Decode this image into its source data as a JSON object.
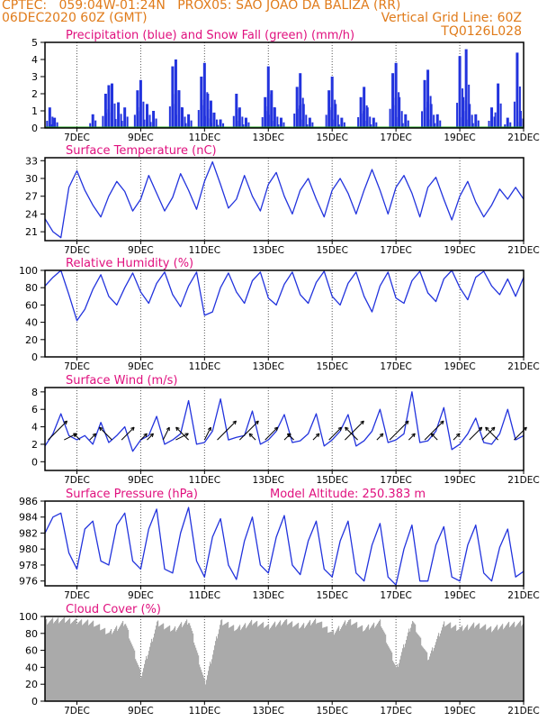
{
  "header": {
    "line1_left": "CPTEC:   059:04W-01:24N   PROX05: SAO JOAO DA BALIZA (RR)",
    "line2_left": "06DEC2020 60Z (GMT)",
    "line2_right": "Vertical Grid Line: 60Z",
    "line3_right": "TQ0126L028"
  },
  "colors": {
    "header": "#e07b1a",
    "title": "#e0107e",
    "series_blue": "#2233dd",
    "snow_green": "#22aa22",
    "cloud_gray": "#aaaaaa",
    "axis": "#000000"
  },
  "x_axis": {
    "start": "06DEC2020 00Z",
    "end": "21DEC2020 00Z",
    "tick_labels": [
      "7DEC",
      "9DEC",
      "11DEC",
      "13DEC",
      "15DEC",
      "17DEC",
      "19DEC",
      "21DEC"
    ],
    "tick_days": [
      1,
      3,
      5,
      7,
      9,
      11,
      13,
      15
    ]
  },
  "chart_data": [
    {
      "type": "bar",
      "title": "Precipitation (blue) and Snow Fall (green) (mm/h)",
      "ylim": [
        0,
        5
      ],
      "yticks": [
        0,
        1,
        2,
        3,
        4,
        5
      ],
      "series": [
        {
          "name": "Precipitation",
          "color": "#2233dd",
          "x": [
            0.15,
            0.3,
            1.5,
            1.9,
            2.0,
            2.1,
            2.3,
            2.5,
            2.9,
            3.0,
            3.2,
            3.4,
            4.0,
            4.1,
            4.2,
            4.3,
            4.5,
            4.9,
            5.0,
            5.1,
            5.2,
            5.3,
            5.5,
            6.0,
            6.1,
            6.3,
            6.9,
            7.0,
            7.1,
            7.2,
            7.4,
            7.9,
            8.0,
            8.1,
            8.3,
            8.9,
            9.0,
            9.1,
            9.3,
            9.9,
            10.0,
            10.1,
            10.3,
            10.9,
            11.0,
            11.1,
            11.3,
            11.9,
            12.0,
            12.1,
            12.3,
            13.0,
            13.1,
            13.2,
            13.3,
            13.5,
            14.0,
            14.2,
            14.5,
            14.8,
            14.9
          ],
          "values": [
            1.2,
            0.6,
            0.8,
            2.0,
            2.5,
            2.6,
            1.5,
            1.2,
            2.2,
            2.8,
            1.4,
            1.0,
            3.6,
            4.0,
            2.2,
            1.2,
            0.8,
            3.0,
            3.8,
            2.0,
            1.6,
            0.9,
            0.5,
            2.0,
            1.2,
            0.6,
            1.8,
            3.6,
            2.2,
            1.2,
            0.6,
            2.4,
            3.2,
            1.4,
            0.6,
            2.2,
            3.0,
            1.4,
            0.6,
            1.8,
            2.4,
            1.2,
            0.6,
            3.2,
            3.8,
            1.8,
            0.8,
            2.8,
            3.4,
            1.4,
            0.8,
            4.2,
            1.8,
            4.6,
            1.4,
            0.8,
            1.2,
            2.6,
            0.6,
            4.4,
            1.0
          ]
        },
        {
          "name": "Snow Fall",
          "color": "#22aa22",
          "x": [],
          "values": []
        }
      ]
    },
    {
      "type": "line",
      "title": "Surface Temperature (nC)",
      "ylim": [
        19.5,
        33.5
      ],
      "yticks": [
        21,
        24,
        27,
        30,
        33
      ],
      "series": [
        {
          "name": "Surface Temperature",
          "color": "#2233dd",
          "x": [
            0.0,
            0.25,
            0.5,
            0.75,
            1.0,
            1.25,
            1.5,
            1.75,
            2.0,
            2.25,
            2.5,
            2.75,
            3.0,
            3.25,
            3.5,
            3.75,
            4.0,
            4.25,
            4.5,
            4.75,
            5.0,
            5.25,
            5.5,
            5.75,
            6.0,
            6.25,
            6.5,
            6.75,
            7.0,
            7.25,
            7.5,
            7.75,
            8.0,
            8.25,
            8.5,
            8.75,
            9.0,
            9.25,
            9.5,
            9.75,
            10.0,
            10.25,
            10.5,
            10.75,
            11.0,
            11.25,
            11.5,
            11.75,
            12.0,
            12.25,
            12.5,
            12.75,
            13.0,
            13.25,
            13.5,
            13.75,
            14.0,
            14.25,
            14.5,
            14.75,
            15.0
          ],
          "values": [
            23.2,
            21.0,
            20.0,
            28.5,
            31.3,
            28.0,
            25.5,
            23.5,
            27.0,
            29.5,
            27.8,
            24.5,
            26.5,
            30.5,
            27.5,
            24.5,
            26.8,
            30.8,
            28.0,
            24.8,
            29.5,
            32.8,
            29.0,
            25.0,
            26.5,
            30.5,
            27.0,
            24.5,
            29.0,
            31.0,
            27.0,
            24.0,
            28.0,
            30.0,
            26.5,
            23.5,
            28.0,
            30.0,
            27.5,
            24.0,
            28.0,
            31.5,
            28.0,
            24.0,
            28.5,
            30.5,
            27.5,
            23.5,
            28.5,
            30.2,
            26.5,
            23.0,
            27.0,
            29.5,
            26.0,
            23.5,
            25.5,
            28.2,
            26.5,
            28.5,
            26.5
          ]
        }
      ]
    },
    {
      "type": "line",
      "title": "Relative Humidity (%)",
      "ylim": [
        0,
        100
      ],
      "yticks": [
        0,
        20,
        40,
        60,
        80,
        100
      ],
      "series": [
        {
          "name": "Relative Humidity",
          "color": "#2233dd",
          "x": [
            0.0,
            0.25,
            0.5,
            0.75,
            1.0,
            1.25,
            1.5,
            1.75,
            2.0,
            2.25,
            2.5,
            2.75,
            3.0,
            3.25,
            3.5,
            3.75,
            4.0,
            4.25,
            4.5,
            4.75,
            5.0,
            5.25,
            5.5,
            5.75,
            6.0,
            6.25,
            6.5,
            6.75,
            7.0,
            7.25,
            7.5,
            7.75,
            8.0,
            8.25,
            8.5,
            8.75,
            9.0,
            9.25,
            9.5,
            9.75,
            10.0,
            10.25,
            10.5,
            10.75,
            11.0,
            11.25,
            11.5,
            11.75,
            12.0,
            12.25,
            12.5,
            12.75,
            13.0,
            13.25,
            13.5,
            13.75,
            14.0,
            14.25,
            14.5,
            14.75,
            15.0
          ],
          "values": [
            82,
            92,
            100,
            72,
            42,
            55,
            78,
            95,
            70,
            60,
            80,
            97,
            75,
            62,
            85,
            98,
            72,
            58,
            82,
            98,
            48,
            52,
            80,
            97,
            75,
            62,
            88,
            98,
            68,
            60,
            84,
            98,
            72,
            62,
            86,
            99,
            70,
            60,
            85,
            98,
            70,
            52,
            82,
            98,
            68,
            62,
            88,
            99,
            74,
            64,
            90,
            100,
            80,
            66,
            92,
            99,
            82,
            72,
            90,
            70,
            92
          ]
        }
      ]
    },
    {
      "type": "line",
      "title": "Surface Wind (m/s)",
      "ylim": [
        -1,
        8.5
      ],
      "yticks": [
        0,
        2,
        4,
        6,
        8
      ],
      "series": [
        {
          "name": "Surface Wind",
          "color": "#2233dd",
          "x": [
            0.0,
            0.25,
            0.5,
            0.75,
            1.0,
            1.25,
            1.5,
            1.75,
            2.0,
            2.25,
            2.5,
            2.75,
            3.0,
            3.25,
            3.5,
            3.75,
            4.0,
            4.25,
            4.5,
            4.75,
            5.0,
            5.25,
            5.5,
            5.75,
            6.0,
            6.25,
            6.5,
            6.75,
            7.0,
            7.25,
            7.5,
            7.75,
            8.0,
            8.25,
            8.5,
            8.75,
            9.0,
            9.25,
            9.5,
            9.75,
            10.0,
            10.25,
            10.5,
            10.75,
            11.0,
            11.25,
            11.5,
            11.75,
            12.0,
            12.25,
            12.5,
            12.75,
            13.0,
            13.25,
            13.5,
            13.75,
            14.0,
            14.25,
            14.5,
            14.75,
            15.0
          ],
          "values": [
            1.8,
            3.2,
            5.5,
            3.0,
            2.5,
            3.0,
            2.0,
            4.5,
            2.2,
            3.0,
            4.0,
            1.2,
            2.5,
            3.0,
            5.2,
            2.0,
            2.5,
            3.2,
            7.0,
            2.0,
            2.2,
            3.5,
            7.2,
            2.5,
            2.8,
            3.0,
            5.8,
            2.0,
            2.5,
            3.5,
            5.4,
            2.2,
            2.4,
            3.2,
            5.5,
            1.8,
            2.5,
            3.5,
            5.4,
            1.8,
            2.4,
            3.5,
            6.0,
            2.2,
            2.5,
            3.2,
            8.0,
            2.2,
            2.4,
            3.5,
            6.2,
            1.4,
            2.0,
            3.2,
            5.0,
            2.2,
            2.0,
            3.2,
            6.0,
            2.5,
            3.0
          ]
        }
      ],
      "wind_arrows": {
        "x": [
          0.1,
          0.6,
          1.1,
          1.4,
          2.1,
          2.4,
          3.0,
          3.2,
          3.7,
          4.1,
          4.5,
          5.0,
          5.4,
          6.1,
          6.6,
          6.9,
          7.5,
          7.8,
          8.4,
          8.9,
          9.4,
          9.8,
          10.4,
          10.8,
          11.4,
          11.9,
          12.3,
          12.8,
          13.3,
          13.7,
          14.2,
          14.7
        ],
        "u": [
          3,
          2,
          -1,
          1,
          -2,
          2,
          1,
          1,
          1,
          2,
          -2,
          1,
          3,
          3,
          -1,
          2,
          1,
          -1,
          1,
          2,
          3,
          -2,
          1,
          3,
          1,
          3,
          -1,
          1,
          2,
          2,
          -2,
          2
        ],
        "v": [
          3,
          1,
          1,
          1,
          2,
          2,
          1,
          1,
          2,
          1,
          2,
          2,
          3,
          3,
          1,
          2,
          1,
          1,
          1,
          2,
          3,
          2,
          1,
          3,
          1,
          3,
          1,
          1,
          2,
          2,
          2,
          2
        ]
      }
    },
    {
      "type": "line",
      "title": "Surface Pressure (hPa)",
      "annotation": "Model Altitude: 250.383 m",
      "ylim": [
        975.4,
        986
      ],
      "yticks": [
        976,
        978,
        980,
        982,
        984,
        986
      ],
      "series": [
        {
          "name": "Surface Pressure",
          "color": "#2233dd",
          "x": [
            0.0,
            0.25,
            0.5,
            0.75,
            1.0,
            1.25,
            1.5,
            1.75,
            2.0,
            2.25,
            2.5,
            2.75,
            3.0,
            3.25,
            3.5,
            3.75,
            4.0,
            4.25,
            4.5,
            4.75,
            5.0,
            5.25,
            5.5,
            5.75,
            6.0,
            6.25,
            6.5,
            6.75,
            7.0,
            7.25,
            7.5,
            7.75,
            8.0,
            8.25,
            8.5,
            8.75,
            9.0,
            9.25,
            9.5,
            9.75,
            10.0,
            10.25,
            10.5,
            10.75,
            11.0,
            11.25,
            11.5,
            11.75,
            12.0,
            12.25,
            12.5,
            12.75,
            13.0,
            13.25,
            13.5,
            13.75,
            14.0,
            14.25,
            14.5,
            14.75,
            15.0
          ],
          "values": [
            982.0,
            984.0,
            984.5,
            979.5,
            977.5,
            982.5,
            983.5,
            978.5,
            978.0,
            983.0,
            984.5,
            978.5,
            977.5,
            982.5,
            985.0,
            977.5,
            977.0,
            982.0,
            985.2,
            978.5,
            976.5,
            981.5,
            983.8,
            978.0,
            976.2,
            981.0,
            984.0,
            978.0,
            977.0,
            981.5,
            984.2,
            978.0,
            976.8,
            981.0,
            983.5,
            977.5,
            976.5,
            981.0,
            983.5,
            977.0,
            976.0,
            980.5,
            983.2,
            976.5,
            975.5,
            980.0,
            983.0,
            976.0,
            976.0,
            980.5,
            982.8,
            976.5,
            976.0,
            980.5,
            983.0,
            977.0,
            976.0,
            980.2,
            982.5,
            976.5,
            977.2
          ]
        }
      ]
    },
    {
      "type": "bar",
      "title": "Cloud Cover (%)",
      "ylim": [
        0,
        100
      ],
      "yticks": [
        0,
        20,
        40,
        60,
        80,
        100
      ],
      "series": [
        {
          "name": "Cloud Cover",
          "color": "#aaaaaa",
          "x": [
            0.0,
            0.5,
            1.0,
            1.5,
            2.0,
            2.5,
            3.0,
            3.5,
            4.0,
            4.5,
            5.0,
            5.5,
            6.0,
            6.5,
            7.0,
            7.5,
            8.0,
            8.5,
            9.0,
            9.5,
            10.0,
            10.5,
            11.0,
            11.5,
            12.0,
            12.5,
            13.0,
            13.5,
            14.0,
            14.5,
            15.0
          ],
          "values": [
            94,
            96,
            94,
            92,
            80,
            93,
            30,
            92,
            84,
            95,
            20,
            94,
            85,
            93,
            88,
            94,
            88,
            95,
            80,
            95,
            85,
            93,
            38,
            95,
            50,
            92,
            85,
            90,
            85,
            90,
            92
          ]
        }
      ]
    }
  ]
}
